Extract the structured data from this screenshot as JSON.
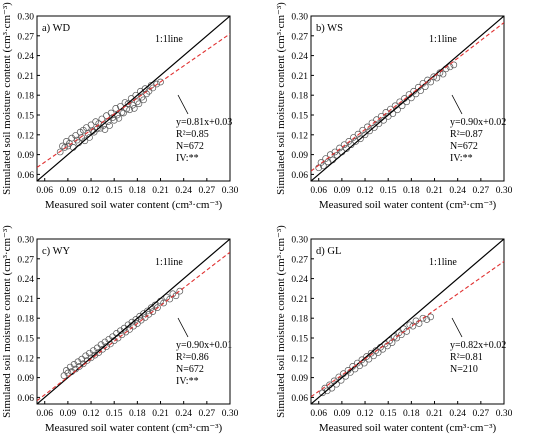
{
  "figure": {
    "panels": [
      {
        "id": "a",
        "label": "a) WD",
        "line_label": "1:1line",
        "stats": [
          "y=0.81x+0.03",
          "R²=0.85",
          "N=672",
          "IV:**"
        ],
        "xlabel": "Measured soil water content (cm³·cm⁻³)",
        "ylabel": "Simulated soil moisture content (cm³·cm⁻³)"
      },
      {
        "id": "b",
        "label": "b) WS",
        "line_label": "1:1line",
        "stats": [
          "y=0.90x+0.02",
          "R²=0.87",
          "N=672",
          "IV:**"
        ],
        "xlabel": "Measured soil water content (cm³·cm⁻³)",
        "ylabel": "Simulated soil moisture content (cm³·cm⁻³)"
      },
      {
        "id": "c",
        "label": "c) WY",
        "line_label": "1:1line",
        "stats": [
          "y=0.90x+0.01",
          "R²=0.86",
          "N=672",
          "IV:**"
        ],
        "xlabel": "Measured soil water content (cm³·cm⁻³)",
        "ylabel": "Simulated soil moisture content (cm³·cm⁻³)"
      },
      {
        "id": "d",
        "label": "d) GL",
        "line_label": "1:1line",
        "stats": [
          "y=0.82x+0.02",
          "R²=0.81",
          "N=210"
        ],
        "xlabel": "Measured soil water content (cm³·cm⁻³)",
        "ylabel": "Simulated soil moisture content (cm³·cm⁻³)"
      }
    ]
  },
  "colors": {
    "marker_edge": "#555555",
    "one_to_one_line": "#000000",
    "fit_line": "#e03030"
  },
  "chart_data": [
    {
      "type": "scatter",
      "title": "a) WD",
      "xlabel": "Measured soil water content (cm³·cm⁻³)",
      "ylabel": "Simulated soil moisture content (cm³·cm⁻³)",
      "xlim": [
        0.05,
        0.3
      ],
      "ylim": [
        0.05,
        0.3
      ],
      "xticks": [
        "0.06",
        "0.09",
        "0.12",
        "0.15",
        "0.18",
        "0.21",
        "0.24",
        "0.27",
        "0.30"
      ],
      "yticks": [
        "0.06",
        "0.09",
        "0.12",
        "0.15",
        "0.18",
        "0.21",
        "0.24",
        "0.27",
        "0.30"
      ],
      "fit": {
        "slope": 0.81,
        "intercept": 0.03,
        "r2": 0.85,
        "n": 672
      },
      "points": [
        [
          0.08,
          0.094
        ],
        [
          0.083,
          0.103
        ],
        [
          0.086,
          0.101
        ],
        [
          0.088,
          0.11
        ],
        [
          0.09,
          0.103
        ],
        [
          0.092,
          0.107
        ],
        [
          0.095,
          0.115
        ],
        [
          0.097,
          0.101
        ],
        [
          0.1,
          0.119
        ],
        [
          0.102,
          0.112
        ],
        [
          0.104,
          0.108
        ],
        [
          0.106,
          0.124
        ],
        [
          0.108,
          0.116
        ],
        [
          0.11,
          0.127
        ],
        [
          0.112,
          0.111
        ],
        [
          0.114,
          0.131
        ],
        [
          0.116,
          0.122
        ],
        [
          0.118,
          0.116
        ],
        [
          0.12,
          0.135
        ],
        [
          0.122,
          0.126
        ],
        [
          0.124,
          0.124
        ],
        [
          0.126,
          0.14
        ],
        [
          0.128,
          0.129
        ],
        [
          0.13,
          0.137
        ],
        [
          0.132,
          0.13
        ],
        [
          0.134,
          0.144
        ],
        [
          0.136,
          0.134
        ],
        [
          0.138,
          0.128
        ],
        [
          0.14,
          0.149
        ],
        [
          0.142,
          0.14
        ],
        [
          0.144,
          0.134
        ],
        [
          0.146,
          0.153
        ],
        [
          0.148,
          0.146
        ],
        [
          0.15,
          0.142
        ],
        [
          0.152,
          0.16
        ],
        [
          0.154,
          0.15
        ],
        [
          0.156,
          0.145
        ],
        [
          0.158,
          0.163
        ],
        [
          0.16,
          0.154
        ],
        [
          0.162,
          0.153
        ],
        [
          0.164,
          0.169
        ],
        [
          0.166,
          0.159
        ],
        [
          0.168,
          0.167
        ],
        [
          0.17,
          0.158
        ],
        [
          0.172,
          0.175
        ],
        [
          0.174,
          0.165
        ],
        [
          0.176,
          0.16
        ],
        [
          0.178,
          0.18
        ],
        [
          0.18,
          0.17
        ],
        [
          0.182,
          0.167
        ],
        [
          0.184,
          0.186
        ],
        [
          0.186,
          0.177
        ],
        [
          0.188,
          0.173
        ],
        [
          0.19,
          0.19
        ],
        [
          0.192,
          0.182
        ],
        [
          0.195,
          0.186
        ],
        [
          0.198,
          0.195
        ],
        [
          0.2,
          0.191
        ],
        [
          0.205,
          0.197
        ],
        [
          0.21,
          0.2
        ]
      ]
    },
    {
      "type": "scatter",
      "title": "b) WS",
      "xlabel": "Measured soil water content (cm³·cm⁻³)",
      "ylabel": "Simulated soil moisture content (cm³·cm⁻³)",
      "xlim": [
        0.05,
        0.3
      ],
      "ylim": [
        0.05,
        0.3
      ],
      "xticks": [
        "0.06",
        "0.09",
        "0.12",
        "0.15",
        "0.18",
        "0.21",
        "0.24",
        "0.27",
        "0.30"
      ],
      "yticks": [
        "0.06",
        "0.09",
        "0.12",
        "0.15",
        "0.18",
        "0.21",
        "0.24",
        "0.27",
        "0.30"
      ],
      "fit": {
        "slope": 0.9,
        "intercept": 0.02,
        "r2": 0.87,
        "n": 672
      },
      "points": [
        [
          0.06,
          0.07
        ],
        [
          0.063,
          0.078
        ],
        [
          0.066,
          0.073
        ],
        [
          0.069,
          0.084
        ],
        [
          0.072,
          0.079
        ],
        [
          0.075,
          0.09
        ],
        [
          0.078,
          0.082
        ],
        [
          0.081,
          0.094
        ],
        [
          0.084,
          0.089
        ],
        [
          0.087,
          0.1
        ],
        [
          0.09,
          0.094
        ],
        [
          0.093,
          0.105
        ],
        [
          0.096,
          0.099
        ],
        [
          0.099,
          0.11
        ],
        [
          0.102,
          0.105
        ],
        [
          0.105,
          0.116
        ],
        [
          0.108,
          0.11
        ],
        [
          0.111,
          0.121
        ],
        [
          0.114,
          0.114
        ],
        [
          0.117,
          0.127
        ],
        [
          0.12,
          0.12
        ],
        [
          0.123,
          0.132
        ],
        [
          0.126,
          0.126
        ],
        [
          0.129,
          0.138
        ],
        [
          0.132,
          0.131
        ],
        [
          0.135,
          0.143
        ],
        [
          0.138,
          0.137
        ],
        [
          0.141,
          0.148
        ],
        [
          0.144,
          0.142
        ],
        [
          0.147,
          0.154
        ],
        [
          0.15,
          0.148
        ],
        [
          0.153,
          0.159
        ],
        [
          0.156,
          0.152
        ],
        [
          0.159,
          0.164
        ],
        [
          0.162,
          0.158
        ],
        [
          0.165,
          0.17
        ],
        [
          0.168,
          0.164
        ],
        [
          0.171,
          0.175
        ],
        [
          0.174,
          0.17
        ],
        [
          0.177,
          0.181
        ],
        [
          0.18,
          0.176
        ],
        [
          0.183,
          0.186
        ],
        [
          0.186,
          0.182
        ],
        [
          0.189,
          0.192
        ],
        [
          0.192,
          0.187
        ],
        [
          0.195,
          0.198
        ],
        [
          0.198,
          0.193
        ],
        [
          0.201,
          0.203
        ],
        [
          0.205,
          0.2
        ],
        [
          0.209,
          0.208
        ],
        [
          0.213,
          0.206
        ],
        [
          0.217,
          0.214
        ],
        [
          0.221,
          0.212
        ],
        [
          0.225,
          0.22
        ],
        [
          0.23,
          0.223
        ],
        [
          0.235,
          0.226
        ]
      ]
    },
    {
      "type": "scatter",
      "title": "c) WY",
      "xlabel": "Measured soil water content (cm³·cm⁻³)",
      "ylabel": "Simulated soil moisture content (cm³·cm⁻³)",
      "xlim": [
        0.05,
        0.3
      ],
      "ylim": [
        0.05,
        0.3
      ],
      "xticks": [
        "0.06",
        "0.09",
        "0.12",
        "0.15",
        "0.18",
        "0.21",
        "0.24",
        "0.27",
        "0.30"
      ],
      "yticks": [
        "0.06",
        "0.09",
        "0.12",
        "0.15",
        "0.18",
        "0.21",
        "0.24",
        "0.27",
        "0.30"
      ],
      "fit": {
        "slope": 0.9,
        "intercept": 0.01,
        "r2": 0.86,
        "n": 672
      },
      "points": [
        [
          0.085,
          0.093
        ],
        [
          0.088,
          0.101
        ],
        [
          0.09,
          0.097
        ],
        [
          0.093,
          0.106
        ],
        [
          0.095,
          0.099
        ],
        [
          0.098,
          0.11
        ],
        [
          0.1,
          0.103
        ],
        [
          0.103,
          0.114
        ],
        [
          0.105,
          0.107
        ],
        [
          0.108,
          0.118
        ],
        [
          0.11,
          0.111
        ],
        [
          0.113,
          0.123
        ],
        [
          0.115,
          0.116
        ],
        [
          0.118,
          0.127
        ],
        [
          0.12,
          0.12
        ],
        [
          0.123,
          0.131
        ],
        [
          0.125,
          0.124
        ],
        [
          0.128,
          0.135
        ],
        [
          0.13,
          0.128
        ],
        [
          0.133,
          0.14
        ],
        [
          0.135,
          0.133
        ],
        [
          0.138,
          0.144
        ],
        [
          0.14,
          0.137
        ],
        [
          0.143,
          0.148
        ],
        [
          0.145,
          0.141
        ],
        [
          0.148,
          0.152
        ],
        [
          0.15,
          0.146
        ],
        [
          0.153,
          0.157
        ],
        [
          0.155,
          0.15
        ],
        [
          0.158,
          0.161
        ],
        [
          0.16,
          0.155
        ],
        [
          0.163,
          0.165
        ],
        [
          0.165,
          0.159
        ],
        [
          0.168,
          0.17
        ],
        [
          0.17,
          0.163
        ],
        [
          0.173,
          0.174
        ],
        [
          0.175,
          0.168
        ],
        [
          0.178,
          0.178
        ],
        [
          0.18,
          0.172
        ],
        [
          0.183,
          0.183
        ],
        [
          0.185,
          0.177
        ],
        [
          0.188,
          0.187
        ],
        [
          0.19,
          0.181
        ],
        [
          0.193,
          0.191
        ],
        [
          0.195,
          0.186
        ],
        [
          0.198,
          0.196
        ],
        [
          0.2,
          0.19
        ],
        [
          0.203,
          0.2
        ],
        [
          0.206,
          0.196
        ],
        [
          0.21,
          0.206
        ],
        [
          0.214,
          0.203
        ],
        [
          0.218,
          0.212
        ],
        [
          0.222,
          0.209
        ],
        [
          0.226,
          0.217
        ],
        [
          0.23,
          0.214
        ],
        [
          0.235,
          0.221
        ]
      ]
    },
    {
      "type": "scatter",
      "title": "d) GL",
      "xlabel": "Measured soil water content (cm³·cm⁻³)",
      "ylabel": "Simulated soil moisture content (cm³·cm⁻³)",
      "xlim": [
        0.05,
        0.3
      ],
      "ylim": [
        0.05,
        0.3
      ],
      "xticks": [
        "0.06",
        "0.09",
        "0.12",
        "0.15",
        "0.18",
        "0.21",
        "0.24",
        "0.27",
        "0.30"
      ],
      "yticks": [
        "0.06",
        "0.09",
        "0.12",
        "0.15",
        "0.18",
        "0.21",
        "0.24",
        "0.27",
        "0.30"
      ],
      "fit": {
        "slope": 0.82,
        "intercept": 0.02,
        "r2": 0.81,
        "n": 210
      },
      "points": [
        [
          0.065,
          0.067
        ],
        [
          0.068,
          0.074
        ],
        [
          0.071,
          0.07
        ],
        [
          0.074,
          0.079
        ],
        [
          0.077,
          0.074
        ],
        [
          0.08,
          0.085
        ],
        [
          0.083,
          0.08
        ],
        [
          0.086,
          0.091
        ],
        [
          0.089,
          0.086
        ],
        [
          0.092,
          0.096
        ],
        [
          0.095,
          0.092
        ],
        [
          0.098,
          0.101
        ],
        [
          0.101,
          0.098
        ],
        [
          0.104,
          0.107
        ],
        [
          0.107,
          0.103
        ],
        [
          0.11,
          0.112
        ],
        [
          0.113,
          0.108
        ],
        [
          0.116,
          0.117
        ],
        [
          0.119,
          0.112
        ],
        [
          0.122,
          0.122
        ],
        [
          0.125,
          0.118
        ],
        [
          0.128,
          0.127
        ],
        [
          0.131,
          0.123
        ],
        [
          0.134,
          0.131
        ],
        [
          0.137,
          0.128
        ],
        [
          0.14,
          0.136
        ],
        [
          0.143,
          0.133
        ],
        [
          0.146,
          0.141
        ],
        [
          0.149,
          0.138
        ],
        [
          0.152,
          0.146
        ],
        [
          0.155,
          0.143
        ],
        [
          0.158,
          0.152
        ],
        [
          0.161,
          0.15
        ],
        [
          0.164,
          0.158
        ],
        [
          0.167,
          0.155
        ],
        [
          0.17,
          0.164
        ],
        [
          0.174,
          0.16
        ],
        [
          0.178,
          0.17
        ],
        [
          0.182,
          0.168
        ],
        [
          0.186,
          0.176
        ],
        [
          0.19,
          0.172
        ],
        [
          0.195,
          0.18
        ],
        [
          0.2,
          0.178
        ],
        [
          0.205,
          0.182
        ]
      ]
    }
  ]
}
